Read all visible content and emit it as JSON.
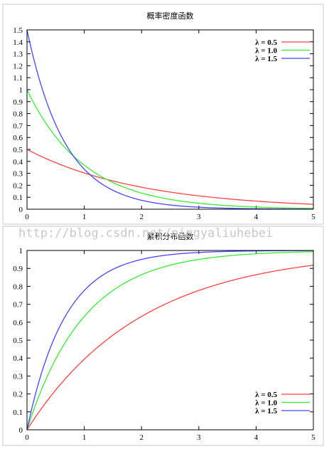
{
  "watermark": "http://blog.csdn.net/ningyaliuhebei",
  "chart_data": [
    {
      "type": "line",
      "title": "概率密度函数",
      "function": "pdf",
      "xlim": [
        0,
        5
      ],
      "ylim": [
        0,
        1.5
      ],
      "xticks": [
        "0",
        "1",
        "2",
        "3",
        "4",
        "5"
      ],
      "yticks": [
        "0",
        "0.1",
        "0.2",
        "0.3",
        "0.4",
        "0.5",
        "0.6",
        "0.7",
        "0.8",
        "0.9",
        "1",
        "1.1",
        "1.2",
        "1.3",
        "1.4",
        "1.5"
      ],
      "legend_position": "top-right",
      "series": [
        {
          "name": "λ = 0.5",
          "lambda": 0.5,
          "color": "#ff4040",
          "x": [
            0,
            0.5,
            1,
            1.5,
            2,
            2.5,
            3,
            3.5,
            4,
            4.5,
            5
          ],
          "y": [
            0.5,
            0.389,
            0.303,
            0.236,
            0.184,
            0.143,
            0.112,
            0.087,
            0.068,
            0.053,
            0.041
          ]
        },
        {
          "name": "λ = 1.0",
          "lambda": 1.0,
          "color": "#33ee33",
          "x": [
            0,
            0.5,
            1,
            1.5,
            2,
            2.5,
            3,
            3.5,
            4,
            4.5,
            5
          ],
          "y": [
            1.0,
            0.607,
            0.368,
            0.223,
            0.135,
            0.082,
            0.05,
            0.03,
            0.018,
            0.011,
            0.007
          ]
        },
        {
          "name": "λ = 1.5",
          "lambda": 1.5,
          "color": "#4444ff",
          "x": [
            0,
            0.5,
            1,
            1.5,
            2,
            2.5,
            3,
            3.5,
            4,
            4.5,
            5
          ],
          "y": [
            1.5,
            0.708,
            0.335,
            0.158,
            0.075,
            0.035,
            0.017,
            0.008,
            0.004,
            0.002,
            0.001
          ]
        }
      ]
    },
    {
      "type": "line",
      "title": "累积分布函数",
      "function": "cdf",
      "xlim": [
        0,
        5
      ],
      "ylim": [
        0,
        1
      ],
      "xticks": [
        "0",
        "1",
        "2",
        "3",
        "4",
        "5"
      ],
      "yticks": [
        "0",
        "0.1",
        "0.2",
        "0.3",
        "0.4",
        "0.5",
        "0.6",
        "0.7",
        "0.8",
        "0.9",
        "1"
      ],
      "legend_position": "bottom-right",
      "series": [
        {
          "name": "λ = 0.5",
          "lambda": 0.5,
          "color": "#ff4040",
          "x": [
            0,
            0.5,
            1,
            1.5,
            2,
            2.5,
            3,
            3.5,
            4,
            4.5,
            5
          ],
          "y": [
            0,
            0.221,
            0.393,
            0.528,
            0.632,
            0.713,
            0.777,
            0.826,
            0.865,
            0.895,
            0.918
          ]
        },
        {
          "name": "λ = 1.0",
          "lambda": 1.0,
          "color": "#33ee33",
          "x": [
            0,
            0.5,
            1,
            1.5,
            2,
            2.5,
            3,
            3.5,
            4,
            4.5,
            5
          ],
          "y": [
            0,
            0.393,
            0.632,
            0.777,
            0.865,
            0.918,
            0.95,
            0.97,
            0.982,
            0.989,
            0.993
          ]
        },
        {
          "name": "λ = 1.5",
          "lambda": 1.5,
          "color": "#4444ff",
          "x": [
            0,
            0.5,
            1,
            1.5,
            2,
            2.5,
            3,
            3.5,
            4,
            4.5,
            5
          ],
          "y": [
            0,
            0.528,
            0.777,
            0.895,
            0.95,
            0.976,
            0.989,
            0.995,
            0.998,
            0.999,
            0.999
          ]
        }
      ]
    }
  ]
}
